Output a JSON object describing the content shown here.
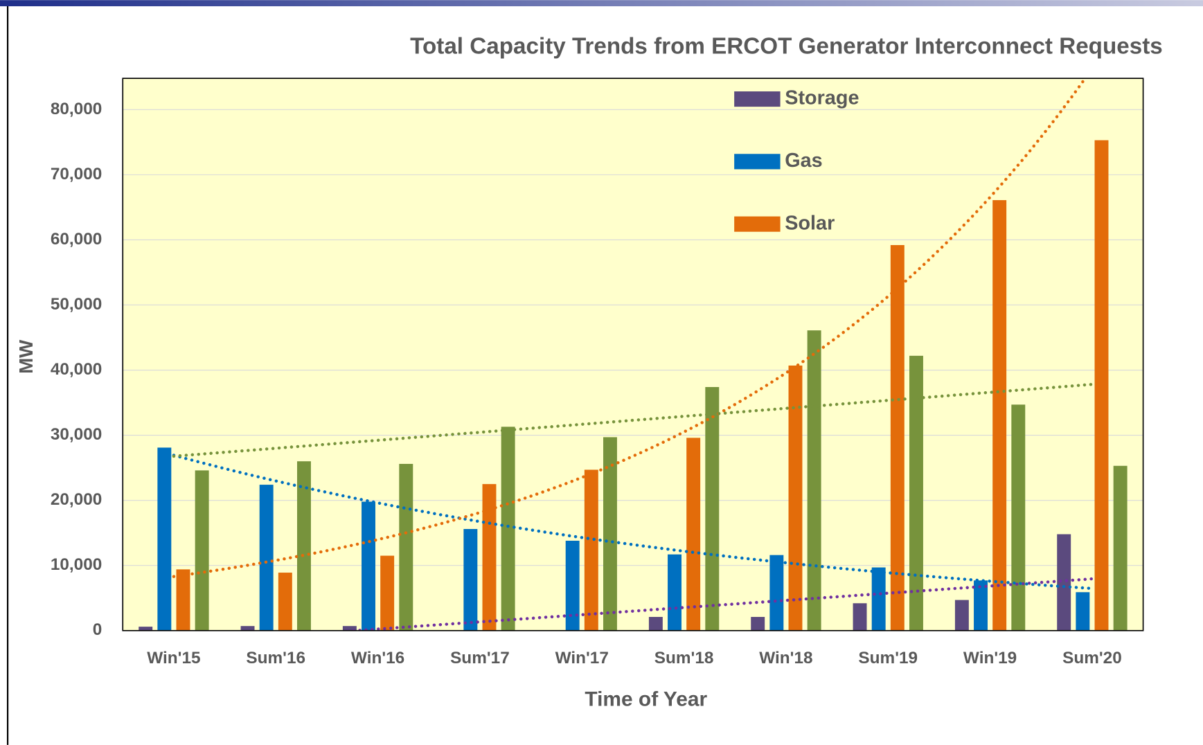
{
  "chart_data": {
    "type": "bar",
    "title": "Total Capacity Trends from ERCOT Generator Interconnect Requests",
    "x_label": "Time of Year",
    "y_label": "MW",
    "categories": [
      "Win'15",
      "Sum'16",
      "Win'16",
      "Sum'17",
      "Win'17",
      "Sum'18",
      "Win'18",
      "Sum'19",
      "Win'19",
      "Sum'20"
    ],
    "series": [
      {
        "name": "Storage",
        "color": "#5b4a7e",
        "trendline": "linear",
        "trend_color": "#7030a0",
        "values": [
          600,
          700,
          700,
          0,
          0,
          2100,
          2100,
          4200,
          4700,
          14800
        ]
      },
      {
        "name": "Gas",
        "color": "#0070c0",
        "trendline": "exponential",
        "trend_color": "#0070c0",
        "values": [
          28100,
          22400,
          19800,
          15600,
          13800,
          11700,
          11600,
          9700,
          7700,
          5900
        ]
      },
      {
        "name": "Solar",
        "color": "#e36c0a",
        "trendline": "exponential",
        "trend_color": "#e36c0a",
        "values": [
          9400,
          8900,
          11500,
          22500,
          24700,
          29600,
          40700,
          59200,
          66100,
          75300
        ]
      },
      {
        "color": "#77933c",
        "trendline": "linear",
        "trend_color": "#77933c",
        "values": [
          24600,
          26000,
          25600,
          31300,
          29700,
          37400,
          46100,
          42200,
          34700,
          25300
        ]
      }
    ],
    "ylim": [
      0,
      84800
    ],
    "yticks": [
      0,
      {
        "value": 10000,
        "label": "10,000"
      },
      {
        "value": 20000,
        "label": "20,000"
      },
      {
        "value": 30000,
        "label": "30,000"
      },
      {
        "value": 40000,
        "label": "40,000"
      },
      {
        "value": 50000,
        "label": "50,000"
      },
      {
        "value": 60000,
        "label": "60,000"
      },
      {
        "value": 70000,
        "label": "70,000"
      },
      {
        "value": 80000,
        "label": "80,000"
      }
    ],
    "grid": true,
    "legend": "top-right"
  }
}
